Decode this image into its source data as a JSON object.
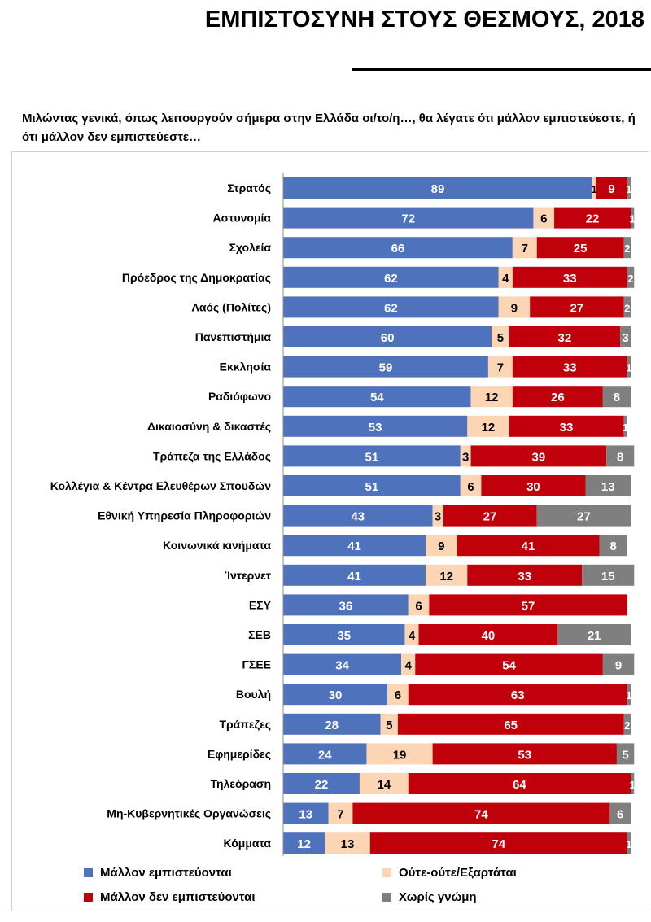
{
  "title": "ΕΜΠΙΣΤΟΣΥΝΗ ΣΤΟΥΣ ΘΕΣΜΟΥΣ, 2018",
  "question": "Μιλώντας γενικά, όπως λειτουργούν σήμερα στην Ελλάδα οι/το/η…, θα λέγατε ότι μάλλον εμπιστεύεστε, ή ότι μάλλον δεν εμπιστεύεστε…",
  "colors": {
    "trust": "#4f72bd",
    "neutral": "#fcd5b5",
    "distrust": "#c0000b",
    "no_opinion": "#7f7f7f",
    "axis": "#8c8c8c"
  },
  "chart_data": {
    "type": "bar",
    "orientation": "horizontal",
    "stacked": true,
    "title": "ΕΜΠΙΣΤΟΣΥΝΗ ΣΤΟΥΣ ΘΕΣΜΟΥΣ, 2018",
    "xlim": [
      0,
      100
    ],
    "legend_position": "bottom",
    "categories": [
      "Στρατός",
      "Αστυνομία",
      "Σχολεία",
      "Πρόεδρος της Δημοκρατίας",
      "Λαός (Πολίτες)",
      "Πανεπιστήμια",
      "Εκκλησία",
      "Ραδιόφωνο",
      "Δικαιοσύνη & δικαστές",
      "Τράπεζα της Ελλάδος",
      "Κολλέγια & Κέντρα Ελευθέρων Σπουδών",
      "Εθνική Υπηρεσία Πληροφοριών",
      "Κοινωνικά κινήματα",
      "Ίντερνετ",
      "ΕΣΥ",
      "ΣΕΒ",
      "ΓΣΕΕ",
      "Βουλή",
      "Τράπεζες",
      "Εφημερίδες",
      "Τηλεόραση",
      "Μη-Κυβερνητικές Οργανώσεις",
      "Κόμματα"
    ],
    "series": [
      {
        "name": "Μάλλον εμπιστεύονται",
        "color_key": "trust",
        "label_color": "#ffffff",
        "values": [
          89,
          72,
          66,
          62,
          62,
          60,
          59,
          54,
          53,
          51,
          51,
          43,
          41,
          41,
          36,
          35,
          34,
          30,
          28,
          24,
          22,
          13,
          12
        ]
      },
      {
        "name": "Ούτε-ούτε/Εξαρτάται",
        "color_key": "neutral",
        "label_color": "#000000",
        "values": [
          1,
          6,
          7,
          4,
          9,
          5,
          7,
          12,
          12,
          3,
          6,
          3,
          9,
          12,
          6,
          4,
          4,
          6,
          5,
          19,
          14,
          7,
          13
        ]
      },
      {
        "name": "Μάλλον δεν εμπιστεύονται",
        "color_key": "distrust",
        "label_color": "#ffffff",
        "values": [
          9,
          22,
          25,
          33,
          27,
          32,
          33,
          26,
          33,
          39,
          30,
          27,
          41,
          33,
          57,
          40,
          54,
          63,
          65,
          53,
          64,
          74,
          74
        ]
      },
      {
        "name": "Χωρίς γνώμη",
        "color_key": "no_opinion",
        "label_color": "#ffffff",
        "values": [
          1,
          1,
          2,
          2,
          2,
          3,
          1,
          8,
          1,
          8,
          13,
          27,
          8,
          15,
          0,
          21,
          9,
          1,
          2,
          5,
          1,
          6,
          1
        ]
      }
    ]
  },
  "legend": [
    {
      "label": "Μάλλον εμπιστεύονται",
      "color_key": "trust"
    },
    {
      "label": "Ούτε-ούτε/Εξαρτάται",
      "color_key": "neutral"
    },
    {
      "label": "Μάλλον δεν εμπιστεύονται",
      "color_key": "distrust"
    },
    {
      "label": "Χωρίς γνώμη",
      "color_key": "no_opinion"
    }
  ]
}
